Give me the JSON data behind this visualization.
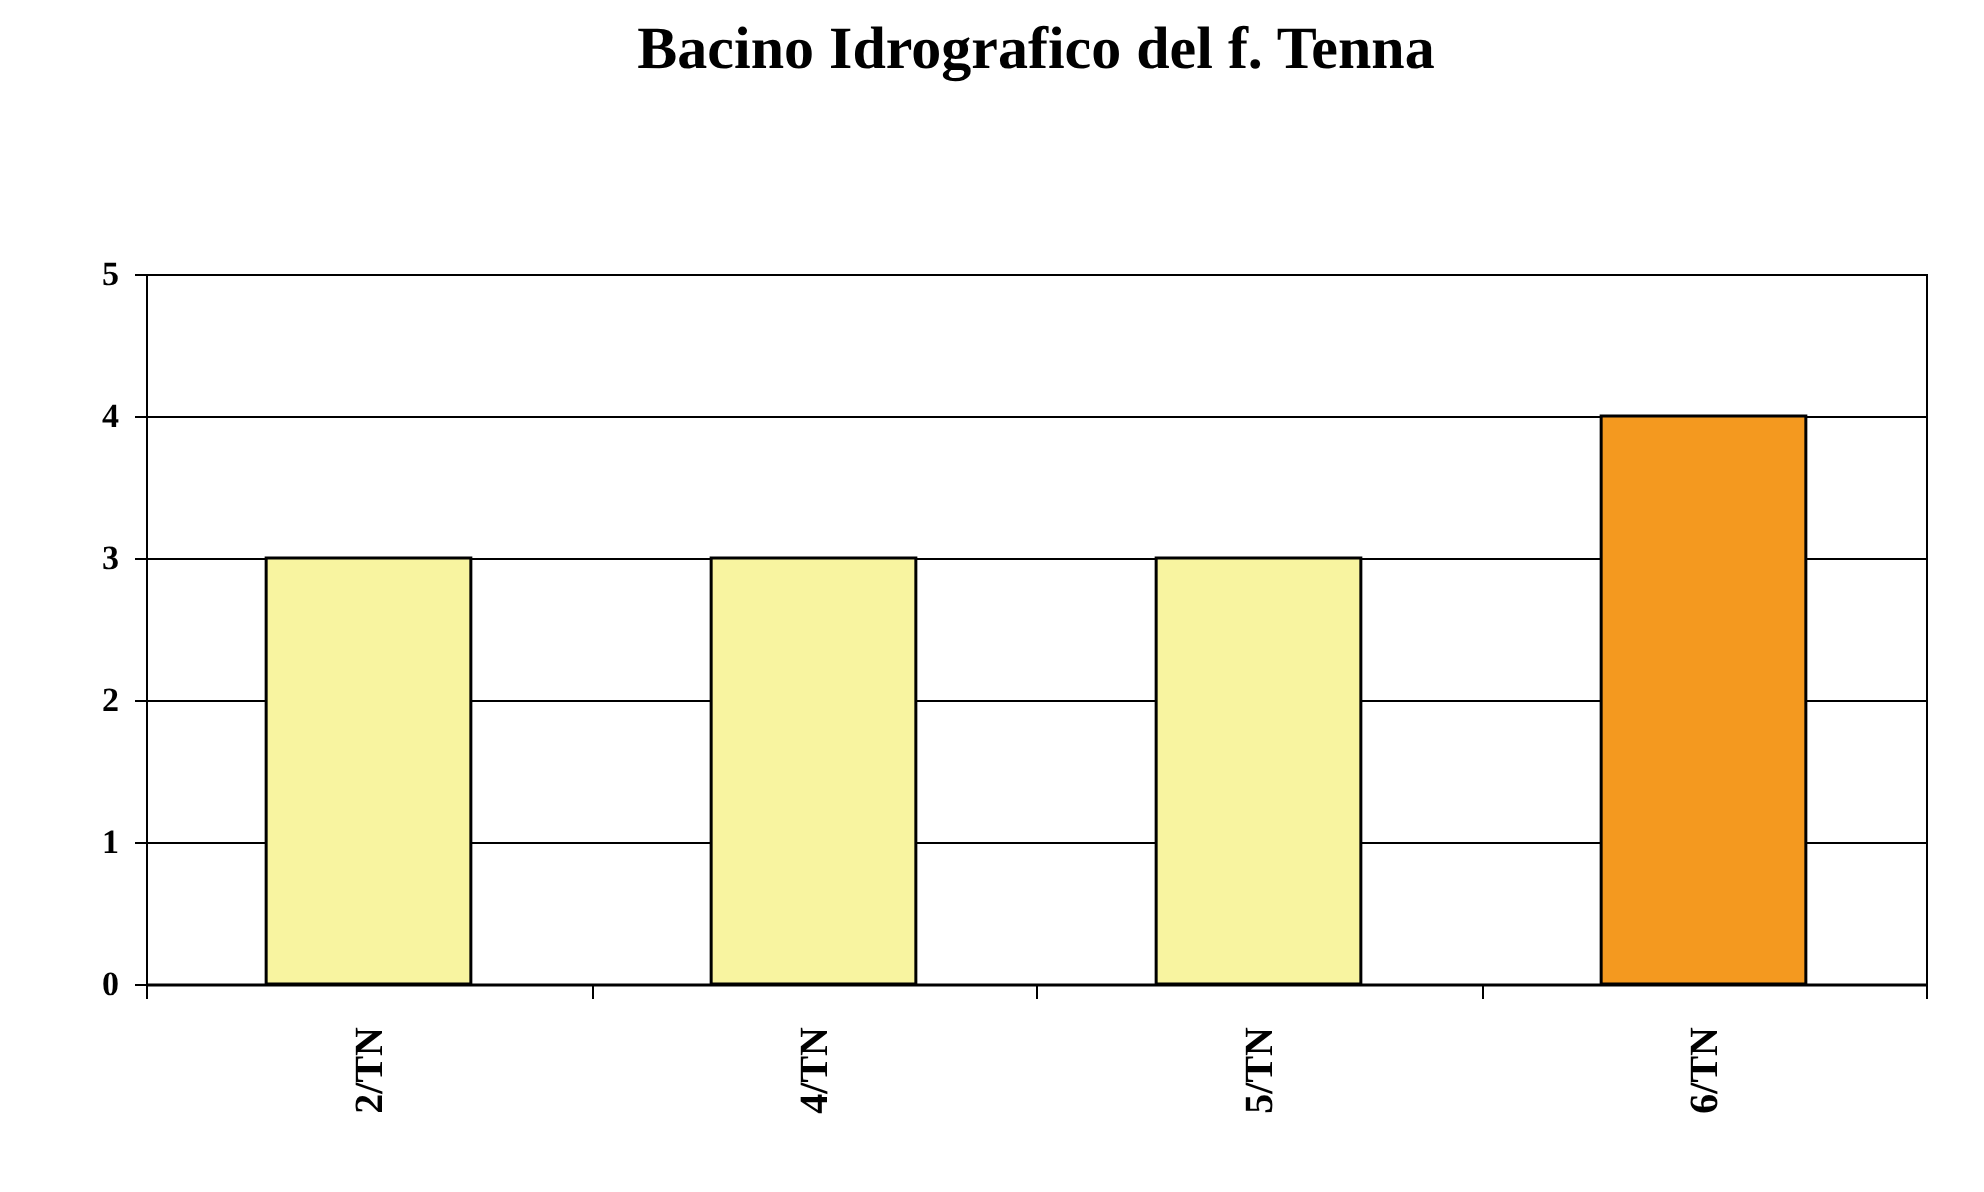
{
  "chart_data": {
    "type": "bar",
    "title": "Bacino Idrografico del f. Tenna",
    "categories": [
      "2/TN",
      "4/TN",
      "5/TN",
      "6/TN"
    ],
    "values": [
      3,
      3,
      3,
      4
    ],
    "colors": [
      "#f8f4a0",
      "#f8f4a0",
      "#f8f4a0",
      "#f4991f"
    ],
    "ylim": [
      0,
      5
    ],
    "yticks": [
      0,
      1,
      2,
      3,
      4,
      5
    ],
    "grid": "y"
  }
}
